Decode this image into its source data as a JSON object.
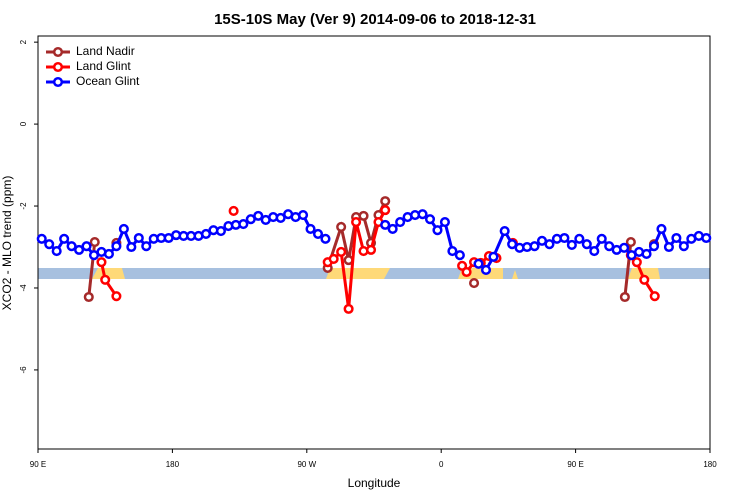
{
  "chart_data": {
    "type": "line",
    "title": "15S-10S May (Ver 9)   2014-09-06 to 2018-12-31",
    "xlabel": "Longitude",
    "ylabel": "XCO2 - MLO trend (ppm)",
    "xlim": [
      90,
      540
    ],
    "ylim": [
      -7.93,
      2.15
    ],
    "xticks": [
      {
        "value": 90,
        "label": "90 E"
      },
      180,
      {
        "value": 270,
        "label": "90 W"
      },
      {
        "value": 360,
        "label": "0"
      },
      {
        "value": 450,
        "label": "90 E"
      },
      {
        "value": 540,
        "label": "180"
      }
    ],
    "yticks": [
      2,
      0,
      -2,
      -4,
      -6
    ],
    "legend": "top-left",
    "series": [
      {
        "name": "Land Nadir",
        "color": "#a52a2a",
        "x": [
          124,
          128,
          null,
          142.5,
          null,
          284,
          293,
          298,
          303,
          308,
          313,
          318,
          322.5,
          null,
          382,
          null,
          483,
          487,
          null,
          502.5
        ],
        "values": [
          -4.22,
          -2.88,
          null,
          -2.9,
          null,
          -3.51,
          -2.51,
          -3.32,
          -2.27,
          -2.24,
          -2.9,
          -2.22,
          -1.88,
          null,
          -3.88,
          null,
          -4.22,
          -2.88,
          null,
          -2.93
        ]
      },
      {
        "name": "Land Glint",
        "color": "#ff0000",
        "x": [
          132.5,
          135,
          142.5,
          null,
          221,
          null,
          284,
          288,
          293,
          298,
          303,
          308,
          313,
          318,
          322.5,
          null,
          374,
          377,
          382,
          386.5,
          392,
          397,
          null,
          408,
          null,
          487,
          491,
          496,
          503
        ],
        "values": [
          -3.37,
          -3.8,
          -4.2,
          null,
          -2.12,
          null,
          -3.37,
          -3.29,
          -3.12,
          -4.51,
          -2.39,
          -3.1,
          -3.07,
          -2.39,
          -2.1,
          null,
          -3.46,
          -3.61,
          -3.37,
          -3.39,
          -3.22,
          -3.27,
          null,
          -2.9,
          null,
          -3.2,
          -3.37,
          -3.8,
          -4.2
        ]
      },
      {
        "name": "Ocean Glint",
        "color": "#0000ff",
        "x": [
          92.5,
          97.5,
          102.5,
          107.5,
          112.5,
          117.5,
          122.5,
          127.5,
          132.5,
          137.5,
          142.5,
          147.5,
          152.5,
          157.5,
          162.5,
          167.5,
          172.5,
          177.5,
          182.5,
          187.5,
          192.5,
          197.5,
          202.5,
          207.5,
          212.5,
          217.5,
          222.5,
          227.5,
          232.5,
          237.5,
          242.5,
          247.5,
          252.5,
          257.5,
          262.5,
          267.5,
          272.5,
          277.5,
          282.5,
          null,
          322.5,
          327.5,
          332.5,
          337.5,
          342.5,
          347.5,
          352.5,
          357.5,
          362.5,
          367.5,
          372.5,
          null,
          385,
          390,
          395,
          402.5,
          407.5,
          412.5,
          417.5,
          422.5,
          427.5,
          432.5,
          437.5,
          442.5,
          447.5,
          452.5,
          457.5,
          462.5,
          467.5,
          472.5,
          477.5,
          482.5,
          487.5,
          492.5,
          497.5,
          502.5,
          507.5,
          512.5,
          517.5,
          522.5,
          527.5,
          532.5,
          537.5
        ],
        "values": [
          -2.8,
          -2.93,
          -3.1,
          -2.8,
          -2.98,
          -3.07,
          -2.98,
          -3.2,
          -3.12,
          -3.17,
          -2.98,
          -2.56,
          -3.0,
          -2.78,
          -2.98,
          -2.8,
          -2.78,
          -2.78,
          -2.71,
          -2.73,
          -2.73,
          -2.73,
          -2.68,
          -2.59,
          -2.61,
          -2.49,
          -2.46,
          -2.44,
          -2.32,
          -2.24,
          -2.34,
          -2.27,
          -2.29,
          -2.2,
          -2.27,
          -2.22,
          -2.56,
          -2.68,
          -2.8,
          null,
          -2.46,
          -2.56,
          -2.39,
          -2.27,
          -2.22,
          -2.2,
          -2.32,
          -2.59,
          -2.39,
          -3.1,
          -3.2,
          null,
          -3.41,
          -3.56,
          -3.24,
          -2.61,
          -2.93,
          -3.02,
          -3.0,
          -2.98,
          -2.85,
          -2.93,
          -2.8,
          -2.78,
          -2.95,
          -2.8,
          -2.93,
          -3.1,
          -2.8,
          -2.98,
          -3.07,
          -3.02,
          -3.2,
          -3.12,
          -3.17,
          -2.98,
          -2.56,
          -3.0,
          -2.78,
          -2.98,
          -2.8,
          -2.73,
          -2.78
        ]
      }
    ]
  }
}
